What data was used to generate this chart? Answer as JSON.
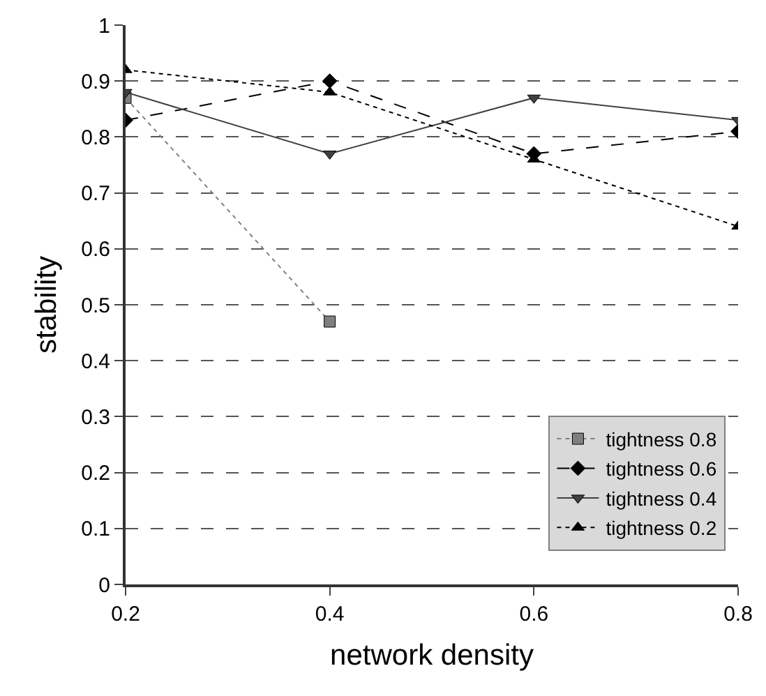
{
  "chart_data": {
    "type": "line",
    "xlabel": "network density",
    "ylabel": "stability",
    "x": [
      0.2,
      0.4,
      0.6,
      0.8
    ],
    "xlim": [
      0.2,
      0.8
    ],
    "xticks": [
      0.2,
      0.4,
      0.6,
      0.8
    ],
    "ylim": [
      0,
      1
    ],
    "yticks": [
      0,
      0.1,
      0.2,
      0.3,
      0.4,
      0.5,
      0.6,
      0.7,
      0.8,
      0.9,
      1
    ],
    "grid": "y",
    "legend": "bottom right",
    "series": [
      {
        "name": "tightness 0.8",
        "color": "#808080",
        "marker": "square",
        "line_style": "dotted",
        "values": [
          0.87,
          0.47,
          null,
          null
        ]
      },
      {
        "name": "tightness 0.6",
        "color": "#000000",
        "marker": "diamond",
        "line_style": "dashed",
        "values": [
          0.83,
          0.9,
          0.77,
          0.81
        ]
      },
      {
        "name": "tightness 0.4",
        "color": "#404040",
        "marker": "triangle-down",
        "line_style": "solid",
        "values": [
          0.88,
          0.77,
          0.87,
          0.83
        ]
      },
      {
        "name": "tightness 0.2",
        "color": "#000000",
        "marker": "triangle",
        "line_style": "dotted",
        "values": [
          0.92,
          0.88,
          0.76,
          0.64
        ]
      }
    ]
  }
}
